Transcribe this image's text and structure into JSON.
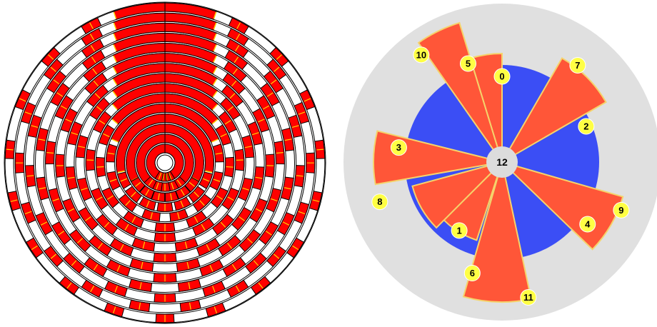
{
  "colors": {
    "ring_fill": "#ffffff",
    "ring_stroke": "#000000",
    "segment_fill": "#ff0000",
    "segment_divider": "#ffd400",
    "backdrop": "#e0e0e0",
    "core": "#3b4ef5",
    "wedge": "#ff5638",
    "wedge_edge": "#f5d36b",
    "marker": "#ffff44",
    "center": "#dcdcdc"
  },
  "left_diagram": {
    "ring_count": 15
  },
  "right_diagram": {
    "center_label": "12",
    "nodes": [
      {
        "label": "0"
      },
      {
        "label": "1"
      },
      {
        "label": "2"
      },
      {
        "label": "3"
      },
      {
        "label": "4"
      },
      {
        "label": "5"
      },
      {
        "label": "6"
      },
      {
        "label": "7"
      },
      {
        "label": "8"
      },
      {
        "label": "9"
      },
      {
        "label": "10"
      },
      {
        "label": "11"
      }
    ]
  }
}
